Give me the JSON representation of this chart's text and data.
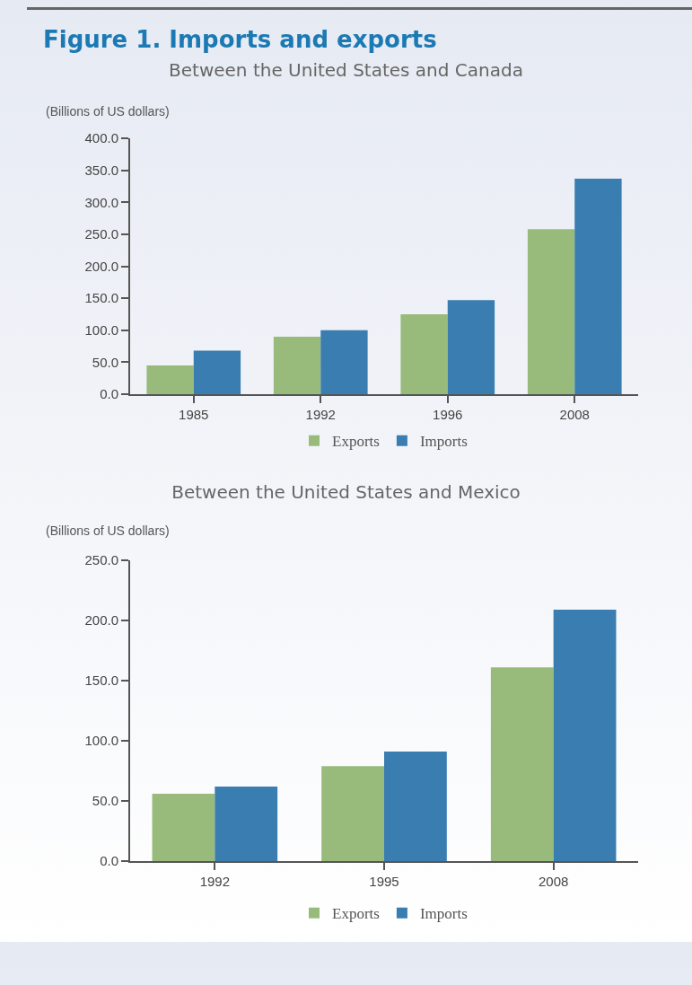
{
  "chart_data": [
    {
      "type": "bar",
      "annotations": [
        "Figure 1. Imports and exports"
      ],
      "title": "Between the United States and Canada",
      "ylabel": "(Billions of US dollars)",
      "categories": [
        "1985",
        "1992",
        "1996",
        "2008"
      ],
      "series": [
        {
          "name": "Exports",
          "color": "#98bb7c",
          "values": [
            45,
            90,
            125,
            258
          ]
        },
        {
          "name": "Imports",
          "color": "#3a7db1",
          "values": [
            68,
            100,
            147,
            337
          ]
        }
      ],
      "ylim": [
        0,
        400
      ],
      "yticks": [
        {
          "value": 0,
          "label": "0.0"
        },
        {
          "value": 50,
          "label": "50.0"
        },
        {
          "value": 100,
          "label": "100.0"
        },
        {
          "value": 150,
          "label": "150.0"
        },
        {
          "value": 200,
          "label": "200.0"
        },
        {
          "value": 250,
          "label": "250.0"
        },
        {
          "value": 300,
          "label": "300.0"
        },
        {
          "value": 350,
          "label": "350.0"
        },
        {
          "value": 400,
          "label": "400.0"
        }
      ],
      "legend": "bottom"
    },
    {
      "type": "bar",
      "title": "Between the United States and Mexico",
      "ylabel": "(Billions of US dollars)",
      "categories": [
        "1992",
        "1995",
        "2008"
      ],
      "series": [
        {
          "name": "Exports",
          "color": "#98bb7c",
          "values": [
            56,
            79,
            161
          ]
        },
        {
          "name": "Imports",
          "color": "#3a7db1",
          "values": [
            62,
            91,
            209
          ]
        }
      ],
      "ylim": [
        0,
        250
      ],
      "yticks": [
        {
          "value": 0,
          "label": "0.0"
        },
        {
          "value": 50,
          "label": "50.0"
        },
        {
          "value": 100,
          "label": "100.0"
        },
        {
          "value": 150,
          "label": "150.0"
        },
        {
          "value": 200,
          "label": "200.0"
        },
        {
          "value": 250,
          "label": "250.0"
        }
      ],
      "legend": "bottom"
    }
  ]
}
